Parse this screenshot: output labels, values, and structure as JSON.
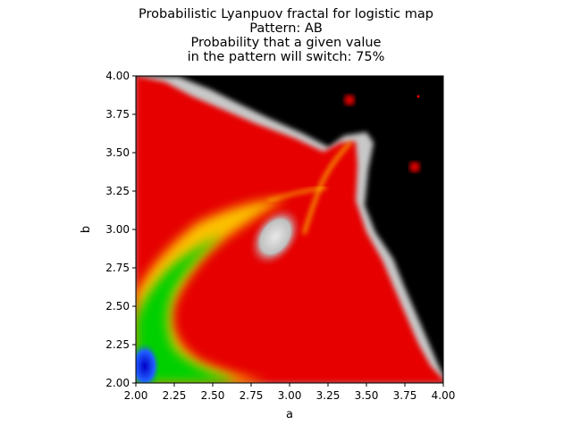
{
  "chart_data": {
    "type": "heatmap",
    "title_lines": [
      "Probabilistic Lyanpuov fractal for logistic map",
      "Pattern: AB",
      "Probability that a given value",
      "in the pattern will switch: 75%"
    ],
    "xlabel": "a",
    "ylabel": "b",
    "xlim": [
      2.0,
      4.0
    ],
    "ylim": [
      2.0,
      4.0
    ],
    "xticks": [
      "2.00",
      "2.25",
      "2.50",
      "2.75",
      "3.00",
      "3.25",
      "3.50",
      "3.75",
      "4.00"
    ],
    "yticks": [
      "2.00",
      "2.25",
      "2.50",
      "2.75",
      "3.00",
      "3.25",
      "3.50",
      "3.75",
      "4.00"
    ],
    "grid": false,
    "colors": {
      "chaotic": "#000000",
      "near_zero": "#c8c8c8",
      "weak_stable": "#e60000",
      "stable": "#ffd700",
      "strong_stable": "#00d000",
      "deepest_stable": "#0000c8"
    }
  }
}
